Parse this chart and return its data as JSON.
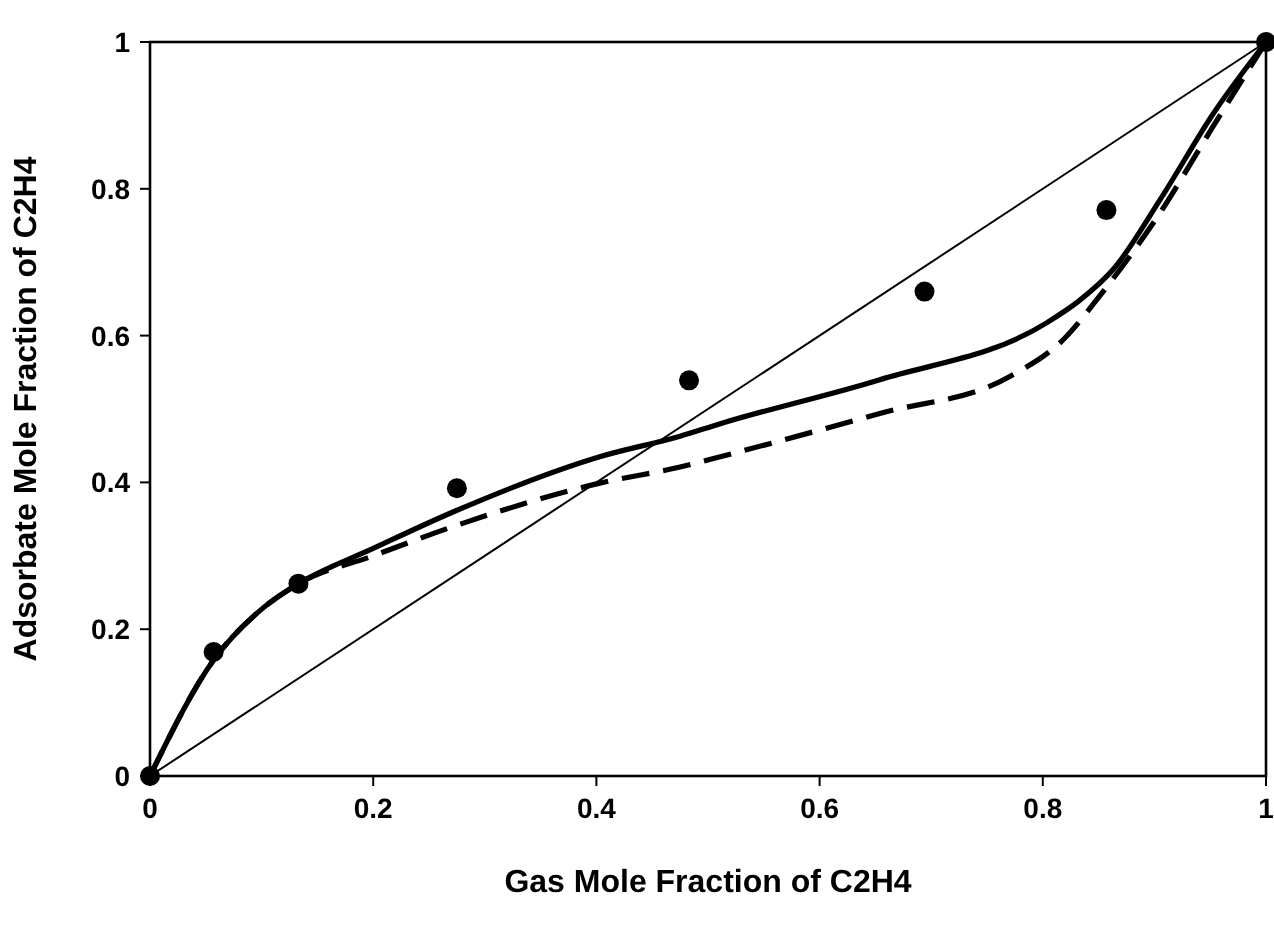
{
  "chart_data": {
    "type": "line",
    "xlabel": "Gas Mole Fraction of C2H4",
    "ylabel": "Adsorbate Mole Fraction of C2H4",
    "xlim": [
      0,
      1
    ],
    "ylim": [
      0,
      1
    ],
    "xticks": [
      0,
      0.2,
      0.4,
      0.6,
      0.8,
      1
    ],
    "yticks": [
      0,
      0.2,
      0.4,
      0.6,
      0.8,
      1
    ],
    "grid": false,
    "series": [
      {
        "color": "#000000",
        "line_style": "solid",
        "x": [
          0,
          0.057,
          0.099,
          0.133,
          0.2,
          0.272,
          0.403,
          0.475,
          0.511,
          0.654,
          0.803,
          0.833,
          0.863,
          0.905,
          0.953,
          1
        ],
        "values": [
          0,
          0.158,
          0.226,
          0.262,
          0.31,
          0.36,
          0.435,
          0.463,
          0.48,
          0.54,
          0.617,
          0.648,
          0.69,
          0.785,
          0.903,
          1
        ]
      },
      {
        "color": "#000000",
        "line_style": "dashed",
        "x": [
          0,
          0.057,
          0.099,
          0.133,
          0.2,
          0.272,
          0.403,
          0.475,
          0.511,
          0.654,
          0.77,
          0.818,
          0.853,
          0.905,
          0.953,
          1
        ],
        "values": [
          0,
          0.158,
          0.226,
          0.262,
          0.3,
          0.34,
          0.399,
          0.421,
          0.435,
          0.494,
          0.544,
          0.594,
          0.658,
          0.767,
          0.886,
          1
        ]
      },
      {
        "color": "#000000",
        "line_style": "solid",
        "x": [
          0,
          1
        ],
        "values": [
          0,
          1
        ]
      },
      {
        "type": "scatter",
        "color": "#000000",
        "marker": "circle",
        "x": [
          0,
          0.057,
          0.133,
          0.275,
          0.483,
          0.694,
          0.857,
          1
        ],
        "values": [
          0,
          0.169,
          0.262,
          0.392,
          0.539,
          0.66,
          0.771,
          1
        ]
      }
    ]
  }
}
